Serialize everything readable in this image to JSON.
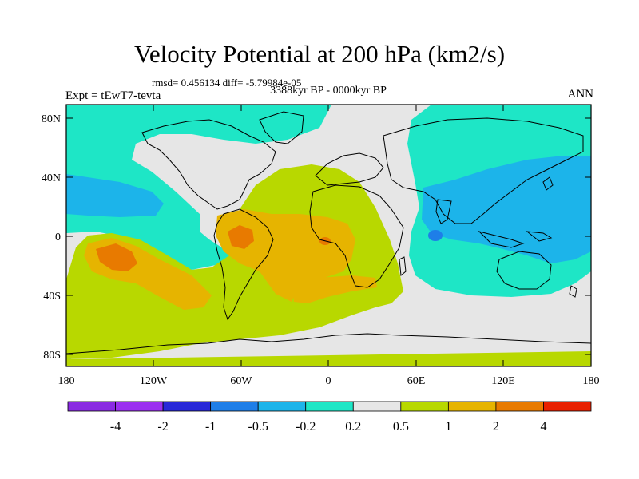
{
  "title": "Velocity Potential at 200 hPa (km2/s)",
  "stats_line": "rmsd= 0.456134 diff= -5.79984e-05",
  "period_line": "3388kyr BP - 0000kyr BP",
  "experiment": "Expt = tEwT7-tevta",
  "season": "ANN",
  "y_axis": {
    "labels": [
      "80N",
      "40N",
      "0",
      "40S",
      "80S"
    ]
  },
  "x_axis": {
    "labels": [
      "180",
      "120W",
      "60W",
      "0",
      "60E",
      "120E",
      "180"
    ]
  },
  "colorbar": {
    "colors": [
      "#9b30f0",
      "#2828d8",
      "#1e7ee8",
      "#1cb4ea",
      "#1ee6c6",
      "#e6e6e6",
      "#b8d800",
      "#e6b400",
      "#e87a00",
      "#e82000"
    ],
    "labels": [
      "-4",
      "-2",
      "-1",
      "-0.5",
      "-0.2",
      "0.2",
      "0.5",
      "1",
      "2",
      "4"
    ]
  },
  "map_colors": {
    "ocean_neutral": "#e6e6e6",
    "cyan": "#1ee6c6",
    "blue_light": "#1cb4ea",
    "blue": "#1e7ee8",
    "green": "#b8d800",
    "yellow": "#e6b400",
    "orange": "#e87a00",
    "coast": "#000000"
  }
}
